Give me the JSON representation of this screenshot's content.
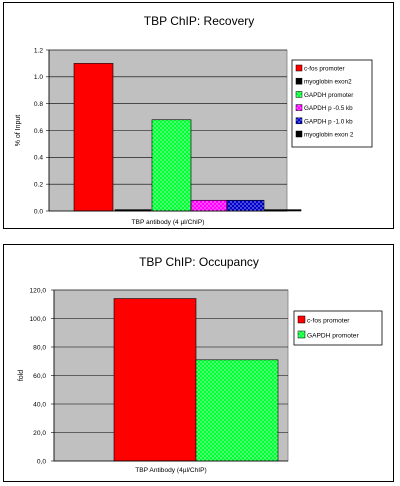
{
  "chart_data": [
    {
      "type": "bar",
      "title": "TBP ChIP:  Recovery",
      "xlabel": "TBP antibody  (4 µl/ChIP)",
      "ylabel": "% of Input",
      "ylim": [
        0,
        1.2
      ],
      "yticks": [
        "0.0",
        "0.2",
        "0.4",
        "0.6",
        "0.8",
        "1.0",
        "1.2"
      ],
      "grid": true,
      "legend_position": "right",
      "plot_background": "#c0c0c0",
      "series": [
        {
          "name": "c-fos promoter",
          "value": 1.1,
          "color": "#ff0000",
          "pattern": "none"
        },
        {
          "name": "myoglobin exon2",
          "value": 0.01,
          "color": "#000000",
          "pattern": "none"
        },
        {
          "name": "GAPDH promoter",
          "value": 0.68,
          "color": "#00ff33",
          "pattern": "dots"
        },
        {
          "name": "GAPDH p -0.5 kb",
          "value": 0.08,
          "color": "#ff00ff",
          "pattern": "dots"
        },
        {
          "name": "GAPDH p -1.0 kb",
          "value": 0.08,
          "color": "#0000cc",
          "pattern": "dots"
        },
        {
          "name": "myoglobin exon 2",
          "value": 0.01,
          "color": "#000000",
          "pattern": "none"
        }
      ]
    },
    {
      "type": "bar",
      "title": "TBP ChIP:  Occupancy",
      "xlabel": "TBP Antibody (4µl/ChIP)",
      "ylabel": "fold",
      "ylim": [
        0,
        120
      ],
      "yticks": [
        "0,0",
        "20,0",
        "40,0",
        "60,0",
        "80,0",
        "100,0",
        "120,0"
      ],
      "grid": true,
      "legend_position": "right",
      "plot_background": "#c0c0c0",
      "series": [
        {
          "name": "c-fos promoter",
          "value": 114,
          "color": "#ff0000",
          "pattern": "none"
        },
        {
          "name": "GAPDH promoter",
          "value": 71,
          "color": "#00ff33",
          "pattern": "dots"
        }
      ]
    }
  ]
}
